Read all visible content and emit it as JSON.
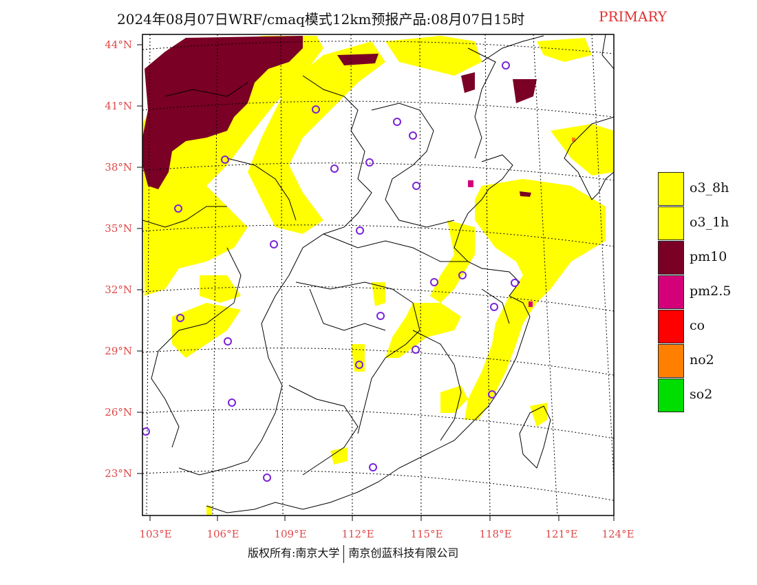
{
  "title": {
    "main": "2024年08月07日WRF/cmaq模式12km预报产品:08月07日15时",
    "tag": "PRIMARY"
  },
  "map": {
    "lat_labels": [
      "44°N",
      "41°N",
      "38°N",
      "35°N",
      "32°N",
      "29°N",
      "26°N",
      "23°N"
    ],
    "lon_labels": [
      "103°E",
      "106°E",
      "109°E",
      "112°E",
      "115°E",
      "118°E",
      "121°E",
      "124°E"
    ]
  },
  "legend": {
    "items": [
      {
        "label": "o3_8h",
        "color": "#ffff00"
      },
      {
        "label": "o3_1h",
        "color": "#ffff00"
      },
      {
        "label": "pm10",
        "color": "#7a0025"
      },
      {
        "label": "pm2.5",
        "color": "#d4007a"
      },
      {
        "label": "co",
        "color": "#ff0000"
      },
      {
        "label": "no2",
        "color": "#ff8000"
      },
      {
        "label": "so2",
        "color": "#00dd00"
      }
    ]
  },
  "footer": {
    "left": "版权所有:南京大学",
    "right": "南京创蓝科技有限公司"
  }
}
